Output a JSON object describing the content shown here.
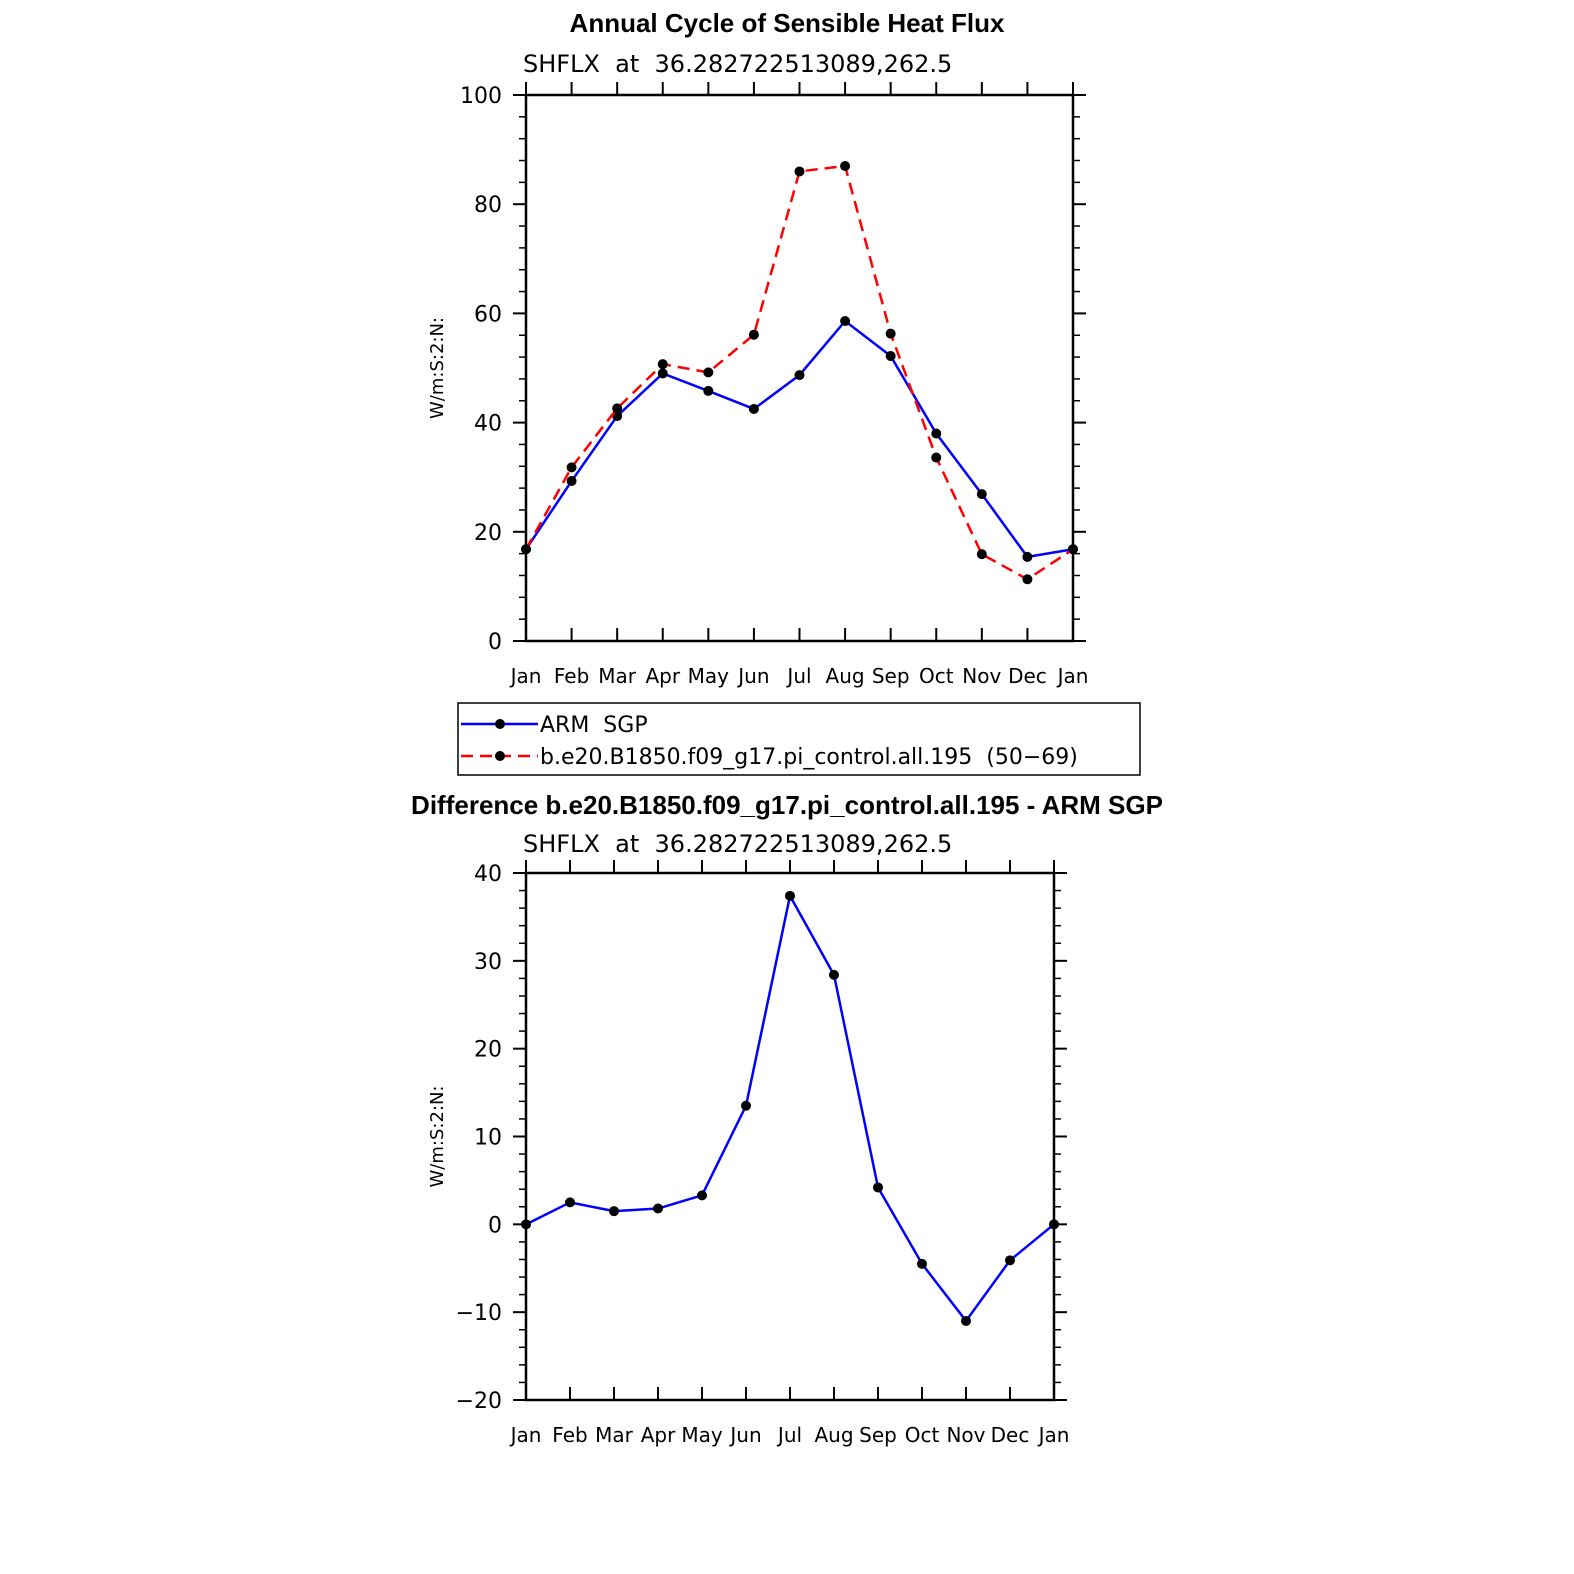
{
  "chart_data": [
    {
      "type": "line",
      "title": "Annual Cycle of Sensible Heat Flux",
      "subtitle": "SHFLX  at  36.282722513089,262.5",
      "ylabel": "W/m:S:2:N:",
      "ylim": [
        0,
        100
      ],
      "yticks": [
        "0",
        "20",
        "40",
        "60",
        "80",
        "100"
      ],
      "categories": [
        "Jan",
        "Feb",
        "Mar",
        "Apr",
        "May",
        "Jun",
        "Jul",
        "Aug",
        "Sep",
        "Oct",
        "Nov",
        "Dec",
        "Jan"
      ],
      "series": [
        {
          "name": "ARM  SGP",
          "color": "#0000ff",
          "dash": "solid",
          "values": [
            16.8,
            29.3,
            41.2,
            49.0,
            45.8,
            42.5,
            48.7,
            58.6,
            52.2,
            38.0,
            26.9,
            15.4,
            16.8
          ]
        },
        {
          "name": "b.e20.B1850.f09_g17.pi_control.all.195  (50−69)",
          "color": "#ff0000",
          "dash": "dashed",
          "values": [
            16.8,
            31.8,
            42.6,
            50.7,
            49.2,
            56.1,
            86.0,
            87.0,
            56.3,
            33.6,
            15.9,
            11.3,
            16.8
          ]
        }
      ],
      "legend": "bottom"
    },
    {
      "type": "line",
      "title": "Difference b.e20.B1850.f09_g17.pi_control.all.195 - ARM SGP",
      "subtitle": "SHFLX  at  36.282722513089,262.5",
      "ylabel": "W/m:S:2:N:",
      "ylim": [
        -20,
        40
      ],
      "yticks": [
        "−20",
        "−10",
        "0",
        "10",
        "20",
        "30",
        "40"
      ],
      "categories": [
        "Jan",
        "Feb",
        "Mar",
        "Apr",
        "May",
        "Jun",
        "Jul",
        "Aug",
        "Sep",
        "Oct",
        "Nov",
        "Dec",
        "Jan"
      ],
      "series": [
        {
          "color": "#0000ff",
          "dash": "solid",
          "values": [
            0.0,
            2.5,
            1.5,
            1.8,
            3.3,
            13.5,
            37.4,
            28.4,
            4.2,
            -4.5,
            -11.0,
            -4.1,
            0.0
          ]
        }
      ]
    }
  ]
}
